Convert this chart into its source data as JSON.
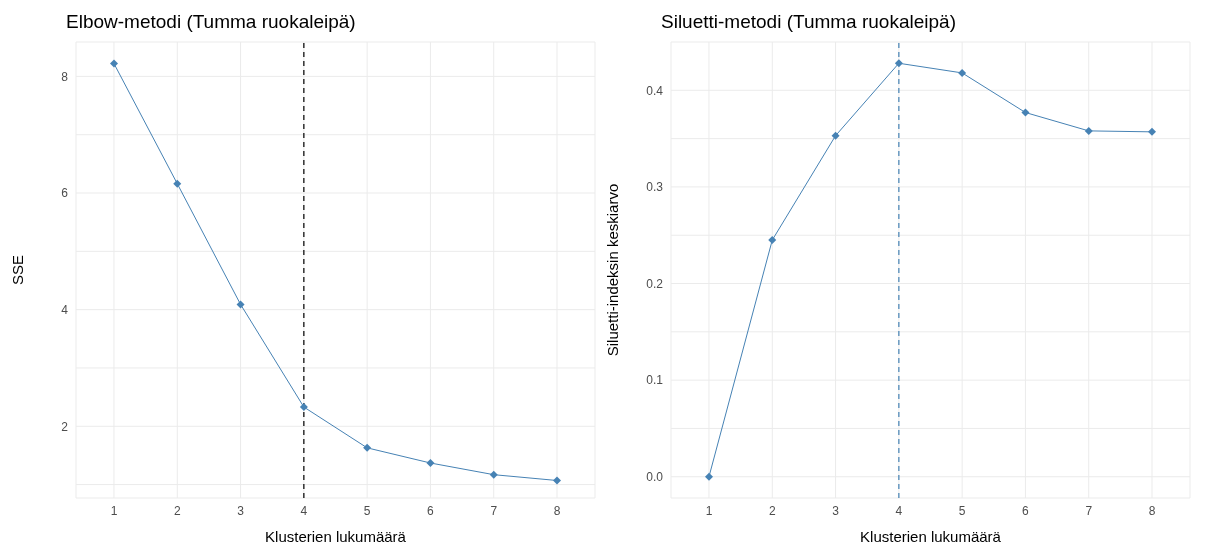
{
  "chart_data": [
    {
      "type": "line",
      "title": "Elbow-metodi (Tumma ruokaleipä)",
      "xlabel": "Klusterien lukumäärä",
      "ylabel": "SSE",
      "x": [
        1,
        2,
        3,
        4,
        5,
        6,
        7,
        8
      ],
      "series": [
        {
          "color": "#4682b4",
          "values": [
            8.22,
            6.16,
            4.09,
            2.33,
            1.63,
            1.37,
            1.17,
            1.07
          ]
        }
      ],
      "xlim": [
        0.4,
        8.6
      ],
      "xticks": [
        1,
        2,
        3,
        4,
        5,
        6,
        7,
        8
      ],
      "ylim": [
        0.77,
        8.59
      ],
      "yticks": [
        {
          "value": 1,
          "label": null
        },
        2,
        {
          "value": 3,
          "label": null
        },
        4,
        {
          "value": 5,
          "label": null
        },
        6,
        {
          "value": 7,
          "label": null
        },
        8
      ],
      "ref_lines": [
        {
          "axis": "x",
          "value": 4,
          "color": "#000000",
          "line_style": "dashed"
        }
      ],
      "grid": true,
      "marker": "diamond",
      "line_style": "solid",
      "legend": false
    },
    {
      "type": "line",
      "title": "Siluetti-metodi (Tumma ruokaleipä)",
      "xlabel": "Klusterien lukumäärä",
      "ylabel": "Siluetti-indeksin keskiarvo",
      "x": [
        1,
        2,
        3,
        4,
        5,
        6,
        7,
        8
      ],
      "series": [
        {
          "color": "#4682b4",
          "values": [
            0,
            0.245,
            0.353,
            0.428,
            0.418,
            0.377,
            0.358,
            0.357
          ]
        }
      ],
      "xlim": [
        0.4,
        8.6
      ],
      "xticks": [
        1,
        2,
        3,
        4,
        5,
        6,
        7,
        8
      ],
      "ylim": [
        -0.022,
        0.45
      ],
      "yticks": [
        {
          "value": 0,
          "label": "0.0"
        },
        {
          "value": 0.05,
          "label": null
        },
        0.1,
        {
          "value": 0.15,
          "label": null
        },
        0.2,
        {
          "value": 0.25,
          "label": null
        },
        0.3,
        {
          "value": 0.35,
          "label": null
        },
        0.4
      ],
      "ref_lines": [
        {
          "axis": "x",
          "value": 4,
          "color": "#4682b4",
          "line_style": "dashed"
        }
      ],
      "grid": true,
      "marker": "diamond",
      "line_style": "solid",
      "legend": false
    }
  ]
}
